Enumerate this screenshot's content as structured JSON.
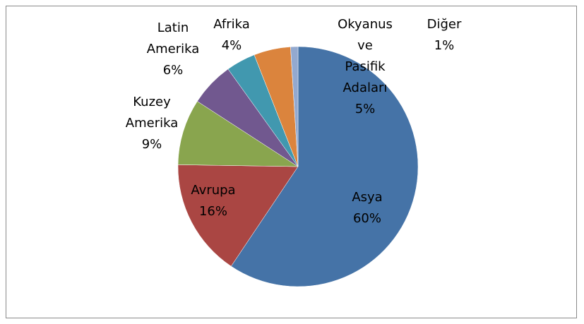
{
  "chart_data": {
    "type": "pie",
    "categories": [
      "Asya",
      "Avrupa",
      "Kuzey Amerika",
      "Latin Amerika",
      "Afrika",
      "Okyanus ve Pasifik Adaları",
      "Diğer"
    ],
    "values": [
      60,
      16,
      9,
      6,
      4,
      5,
      1
    ],
    "value_labels": [
      "60%",
      "16%",
      "9%",
      "6%",
      "4%",
      "5%",
      "1%"
    ],
    "colors": [
      "#4573a7",
      "#aa4643",
      "#89a54e",
      "#71588f",
      "#4198af",
      "#db843d",
      "#93a9cf"
    ]
  }
}
